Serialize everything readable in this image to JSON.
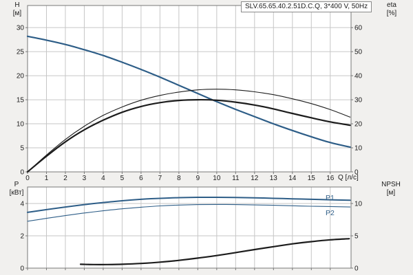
{
  "title": "SLV.65.65.40.2.51D.C.Q, 3*400 V, 50Hz",
  "colors": {
    "background": "#f1f0ee",
    "plot_background": "#ffffff",
    "grid": "#c6c6c6",
    "border": "#777777",
    "text": "#1a1a1a",
    "curve_blue": "#2d5d87",
    "curve_black": "#1c1c1c"
  },
  "labels": {
    "y_left_top": {
      "name": "H",
      "unit": "[м]"
    },
    "y_right_top": {
      "name": "eta",
      "unit": "[%]"
    },
    "x_axis": "Q [л/с]",
    "y_left_bottom": {
      "name": "P",
      "unit": "[кВт]"
    },
    "y_right_bottom": {
      "name": "NPSH",
      "unit": "[м]"
    },
    "p1": "P1",
    "p2": "P2"
  },
  "chart_data": [
    {
      "type": "line",
      "panel": "top",
      "title": "Head and efficiency vs flow",
      "x": {
        "label": "Q [л/с]",
        "min": 0,
        "max": 17.1,
        "ticks": [
          0,
          1,
          2,
          3,
          4,
          5,
          6,
          7,
          8,
          9,
          10,
          11,
          12,
          13,
          14,
          15,
          16
        ],
        "labels_visible": true
      },
      "y_left": {
        "label": "H [м]",
        "min": 0,
        "max": 34.6,
        "ticks": [
          0,
          5,
          10,
          15,
          20,
          25,
          30
        ]
      },
      "y_right": {
        "label": "eta [%]",
        "min": 0,
        "max": 69.2,
        "ticks": [
          0,
          10,
          20,
          30,
          40,
          50,
          60
        ]
      },
      "grid": true,
      "series": [
        {
          "name": "head-curve",
          "axis": "left",
          "color": "#2d5d87",
          "width": 2.2,
          "x": [
            0,
            1,
            2,
            3,
            4,
            5,
            6,
            7,
            8,
            9,
            10,
            11,
            12,
            13,
            14,
            15,
            16,
            17.05
          ],
          "y": [
            28.2,
            27.4,
            26.5,
            25.4,
            24.2,
            22.8,
            21.3,
            19.7,
            18.0,
            16.3,
            14.6,
            13.0,
            11.5,
            10.0,
            8.6,
            7.3,
            6.1,
            5.15
          ]
        },
        {
          "name": "eta-thin-curve",
          "axis": "right",
          "color": "#1c1c1c",
          "width": 1.1,
          "x": [
            0,
            1,
            2,
            3,
            4,
            5,
            6,
            7,
            8,
            9,
            10,
            11,
            12,
            13,
            14,
            15,
            16,
            17.05
          ],
          "y": [
            0,
            7,
            13.5,
            19,
            23.5,
            27,
            29.8,
            31.8,
            33.2,
            34.1,
            34.4,
            34.1,
            33.3,
            32.1,
            30.4,
            28.4,
            25.9,
            22.8
          ]
        },
        {
          "name": "eta-thick-curve",
          "axis": "right",
          "color": "#1c1c1c",
          "width": 2.2,
          "x": [
            0,
            1,
            2,
            3,
            4,
            5,
            6,
            7,
            8,
            9,
            10,
            11,
            12,
            13,
            14,
            15,
            16,
            17.05
          ],
          "y": [
            0,
            6.5,
            12.5,
            17.5,
            21.5,
            24.8,
            27.2,
            28.8,
            29.7,
            30.0,
            29.8,
            29.0,
            27.8,
            26.2,
            24.3,
            22.5,
            20.8,
            19.4
          ]
        }
      ]
    },
    {
      "type": "line",
      "panel": "bottom",
      "title": "Power and NPSH vs flow",
      "x": {
        "label": "",
        "min": 0,
        "max": 17.1,
        "ticks": [
          0,
          1,
          2,
          3,
          4,
          5,
          6,
          7,
          8,
          9,
          10,
          11,
          12,
          13,
          14,
          15,
          16
        ],
        "labels_visible": false
      },
      "y_left": {
        "label": "P [кВт]",
        "min": 0,
        "max": 5.02,
        "ticks": [
          0,
          2,
          4
        ]
      },
      "y_right": {
        "label": "NPSH [м]",
        "min": 0,
        "max": 12.55,
        "ticks": [
          0,
          5,
          10
        ]
      },
      "grid": true,
      "series": [
        {
          "name": "p1-curve",
          "axis": "left",
          "color": "#2d5d87",
          "width": 2.0,
          "x": [
            0,
            1,
            2,
            3,
            4,
            5,
            6,
            7,
            8,
            9,
            10,
            11,
            12,
            13,
            14,
            15,
            16,
            17.05
          ],
          "y": [
            3.45,
            3.62,
            3.78,
            3.93,
            4.06,
            4.17,
            4.26,
            4.32,
            4.36,
            4.38,
            4.38,
            4.37,
            4.35,
            4.32,
            4.29,
            4.26,
            4.23,
            4.2
          ]
        },
        {
          "name": "p2-curve",
          "axis": "left",
          "color": "#2d5d87",
          "width": 1.1,
          "x": [
            0,
            1,
            2,
            3,
            4,
            5,
            6,
            7,
            8,
            9,
            10,
            11,
            12,
            13,
            14,
            15,
            16,
            17.05
          ],
          "y": [
            2.9,
            3.08,
            3.25,
            3.41,
            3.55,
            3.67,
            3.77,
            3.85,
            3.9,
            3.93,
            3.94,
            3.93,
            3.91,
            3.89,
            3.86,
            3.83,
            3.81,
            3.78
          ]
        },
        {
          "name": "npsh-curve",
          "axis": "right",
          "color": "#1c1c1c",
          "width": 2.2,
          "x": [
            2.8,
            3.5,
            4.2,
            5,
            6,
            7,
            8,
            9,
            10,
            11,
            12,
            13,
            14,
            15,
            16,
            17.0
          ],
          "y": [
            0.6,
            0.55,
            0.55,
            0.6,
            0.72,
            0.92,
            1.2,
            1.55,
            1.95,
            2.4,
            2.87,
            3.32,
            3.75,
            4.1,
            4.38,
            4.55
          ]
        }
      ]
    }
  ]
}
